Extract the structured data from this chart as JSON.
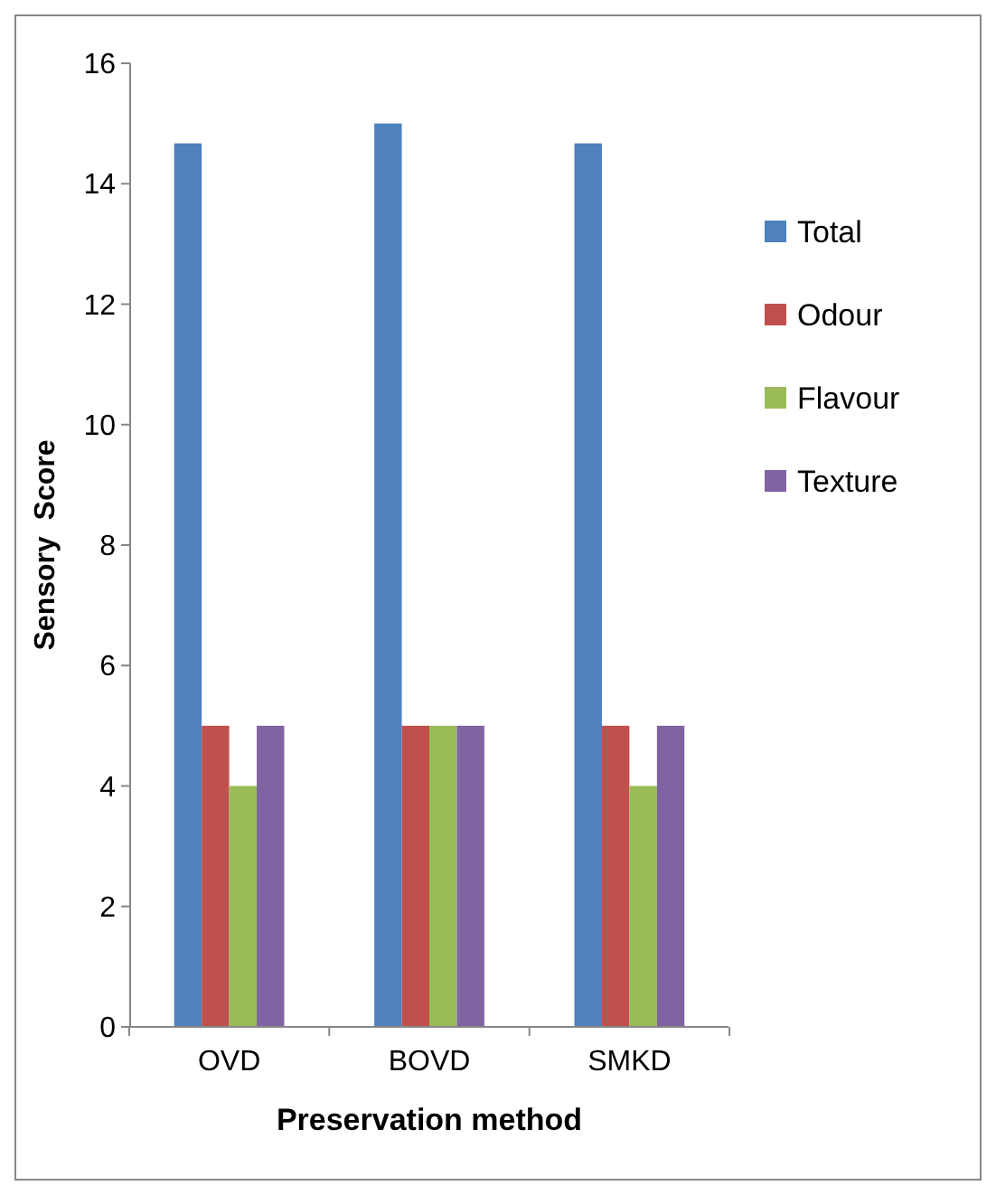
{
  "chart_data": {
    "type": "bar",
    "xlabel": "Preservation method",
    "ylabel": "Sensory  Score",
    "categories": [
      "OVD",
      "BOVD",
      "SMKD"
    ],
    "series": [
      {
        "name": "Total",
        "color": "#4f81bd",
        "values": [
          14.67,
          15,
          14.67
        ]
      },
      {
        "name": "Odour",
        "color": "#c0504d",
        "values": [
          5,
          5,
          5
        ]
      },
      {
        "name": "Flavour",
        "color": "#9bbb59",
        "values": [
          4,
          5,
          4
        ]
      },
      {
        "name": "Texture",
        "color": "#8064a2",
        "values": [
          5,
          5,
          5
        ]
      }
    ],
    "ylim": [
      0,
      16
    ],
    "yticks": [
      0,
      2,
      4,
      6,
      8,
      10,
      12,
      14,
      16
    ],
    "legend": "right",
    "grid": false
  }
}
